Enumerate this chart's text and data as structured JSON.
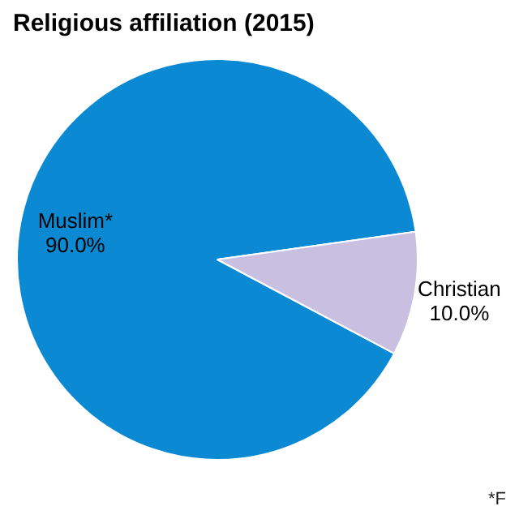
{
  "chart_data": {
    "type": "pie",
    "title": "Religious affiliation (2015)",
    "categories": [
      "Muslim*",
      "Christian"
    ],
    "values": [
      90,
      10
    ],
    "colors": [
      "#0b8ad3",
      "#c9c0e1"
    ],
    "value_labels": [
      "90.0%",
      "10.0%"
    ],
    "annotations": [
      "*F"
    ],
    "legend": false
  }
}
